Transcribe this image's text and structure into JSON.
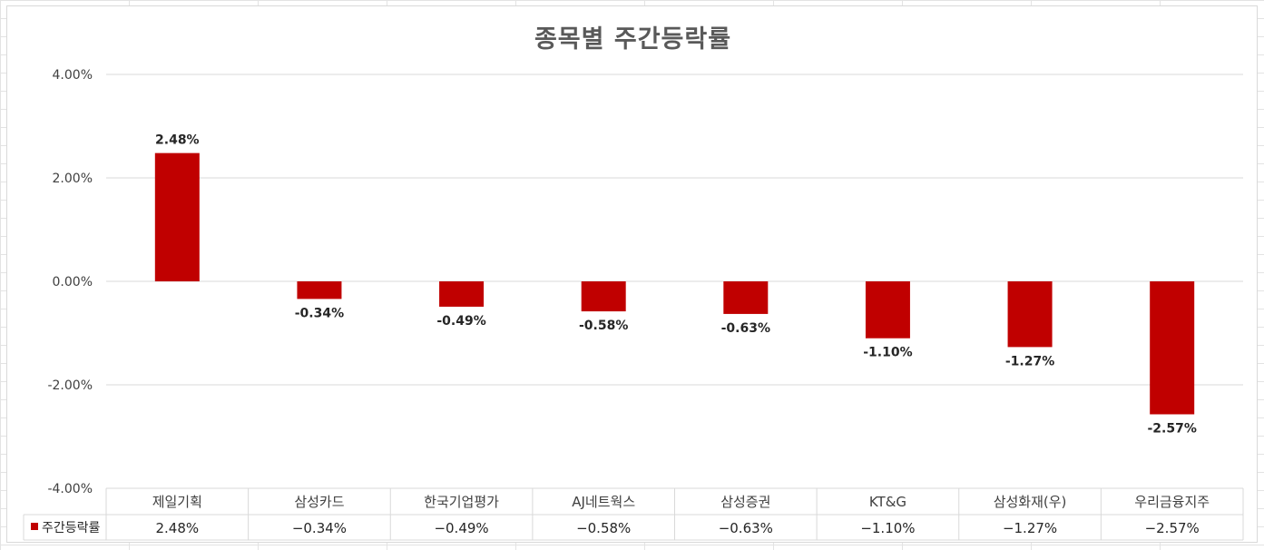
{
  "chart_data": {
    "type": "bar",
    "title": "종목별 주간등락률",
    "categories": [
      "제일기획",
      "삼성카드",
      "한국기업평가",
      "AJ네트웍스",
      "삼성증권",
      "KT&G",
      "삼성화재(우)",
      "우리금융지주"
    ],
    "series": [
      {
        "name": "주간등락률",
        "values": [
          2.48,
          -0.34,
          -0.49,
          -0.58,
          -0.63,
          -1.1,
          -1.27,
          -2.57
        ],
        "labels": [
          "2.48%",
          "-0.34%",
          "-0.49%",
          "-0.58%",
          "-0.63%",
          "-1.10%",
          "-1.27%",
          "-2.57%"
        ],
        "table_labels": [
          "2.48%",
          "−0.34%",
          "−0.49%",
          "−0.58%",
          "−0.63%",
          "−1.10%",
          "−1.27%",
          "−2.57%"
        ],
        "color": "#c00000"
      }
    ],
    "ylim": [
      -4,
      4
    ],
    "yticks": [
      4,
      2,
      0,
      -2,
      -4
    ],
    "ytick_labels": [
      "4.00%",
      "2.00%",
      "0.00%",
      "-2.00%",
      "-4.00%"
    ],
    "grid": true,
    "legend": "data-table",
    "xlabel": "",
    "ylabel": ""
  }
}
